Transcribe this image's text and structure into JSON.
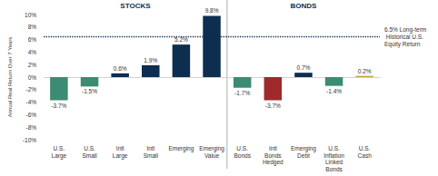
{
  "chart_data": {
    "type": "bar",
    "y_label": "Annual Real Return Over 7 Years",
    "ylim": [
      -10,
      10
    ],
    "yticks": [
      {
        "value": -10,
        "label": "-10%"
      },
      {
        "value": -8,
        "label": "-8%"
      },
      {
        "value": -6,
        "label": "-6%"
      },
      {
        "value": -4,
        "label": "-4%"
      },
      {
        "value": -2,
        "label": "-2%"
      },
      {
        "value": 0,
        "label": "0%"
      },
      {
        "value": 2,
        "label": "2%"
      },
      {
        "value": 4,
        "label": "4%"
      },
      {
        "value": 6,
        "label": "6%"
      },
      {
        "value": 8,
        "label": "8%"
      },
      {
        "value": 10,
        "label": "10%"
      }
    ],
    "grid": false,
    "data_labels": true,
    "groups": [
      {
        "name": "STOCKS",
        "categories": [
          "U.S. Large",
          "U.S. Small",
          "Intl Large",
          "Intl Small",
          "Emerging",
          "Emerging Value"
        ],
        "values": [
          -3.7,
          -1.5,
          0.6,
          1.9,
          5.2,
          9.8
        ],
        "value_labels": [
          "-3.7%",
          "-1.5%",
          "0.6%",
          "1.9%",
          "5.2%",
          "9.8%"
        ],
        "colors": [
          "#3b8c72",
          "#3b8c72",
          "#0d2e4f",
          "#0d2e4f",
          "#0d2e4f",
          "#0d2e4f"
        ]
      },
      {
        "name": "BONDS",
        "categories": [
          "U.S. Bonds",
          "Intl Bonds Hedged",
          "Emerging Debt",
          "U.S. Inflation Linked Bonds",
          "U.S. Cash"
        ],
        "values": [
          -1.7,
          -3.7,
          0.7,
          -1.4,
          0.2
        ],
        "value_labels": [
          "-1.7%",
          "-3.7%",
          "0.7%",
          "-1.4%",
          "0.2%"
        ],
        "colors": [
          "#3b8c72",
          "#9e2a2b",
          "#0d2e4f",
          "#3b8c72",
          "#c8a13a"
        ]
      }
    ],
    "reference_line": {
      "value": 6.5,
      "label": "6.5% Long-term Historical U.S. Equity Return",
      "line_style": "dotted",
      "color": "#0d2e4f"
    }
  }
}
